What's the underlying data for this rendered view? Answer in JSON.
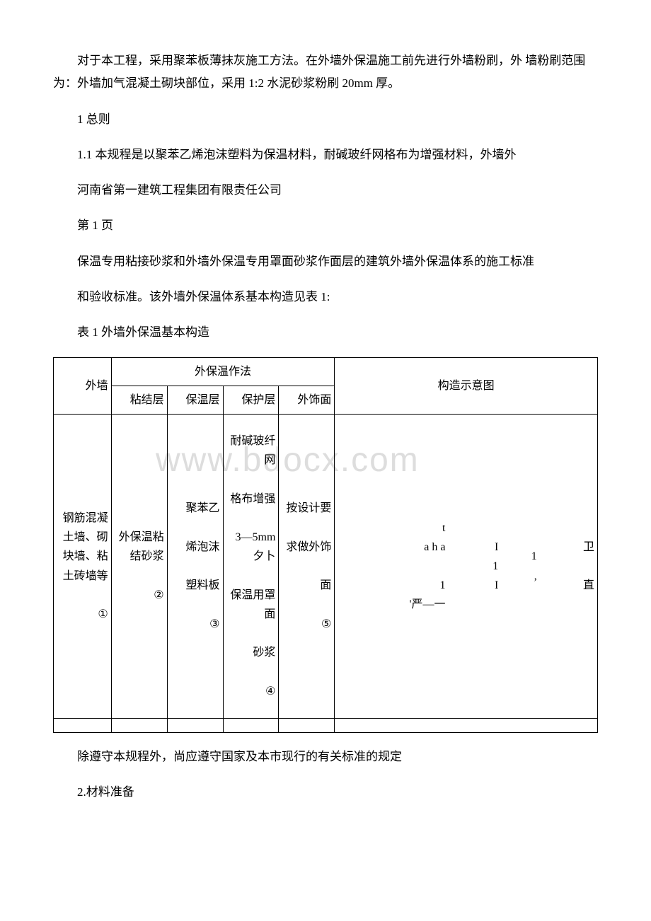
{
  "watermark": "www.bdocx.com",
  "paragraphs": {
    "p1": "对于本工程，采用聚苯板薄抹灰施工方法。在外墙外保温施工前先进行外墙粉刷，外 墙粉刷范围为：外墙加气混凝土砌块部位，采用 1:2 水泥砂浆粉刷 20mm 厚。",
    "p2": "1 总则",
    "p3": "1.1 本规程是以聚苯乙烯泡沫塑料为保温材料，耐碱玻纤网格布为增强材料，外墙外",
    "p4": "河南省第一建筑工程集团有限责任公司",
    "p5": "第 1 页",
    "p6": "保温专用粘接砂浆和外墙外保温专用罩面砂浆作面层的建筑外墙外保温体系的施工标准",
    "p7": "和验收标准。该外墙外保温体系基本构造见表 1:",
    "p8": "表 1 外墙外保温基本构造",
    "p9": "除遵守本规程外，尚应遵守国家及本市现行的有关标准的规定",
    "p10": "2.材料准备"
  },
  "table": {
    "header": {
      "wall_col": "外墙",
      "method_title": "外保温作法",
      "bond": "粘结层",
      "insulation": "保温层",
      "protection": "保护层",
      "facing": "外饰面",
      "diagram_title": "构造示意图"
    },
    "row1": {
      "wall": "钢筋混凝 土墙、砌 块墙、粘 土砖墙等\n\n①",
      "bond": "外保温粘结砂浆\n\n②",
      "insulation": "聚苯乙\n\n烯泡沫\n\n塑料板\n\n③",
      "protection": "耐碱玻纤网\n\n格布增强\n\n3—5mm夕卜\n\n保温用罩面\n\n砂浆\n\n④",
      "facing": "按设计要\n\n求做外饰\n\n面\n\n⑤",
      "diag_c1": "t\na h a\n\n1\n'严—一",
      "diag_c2": "I\n1\nI",
      "diag_c3": "1\n,",
      "diag_c4": "卫\n\n直"
    }
  }
}
